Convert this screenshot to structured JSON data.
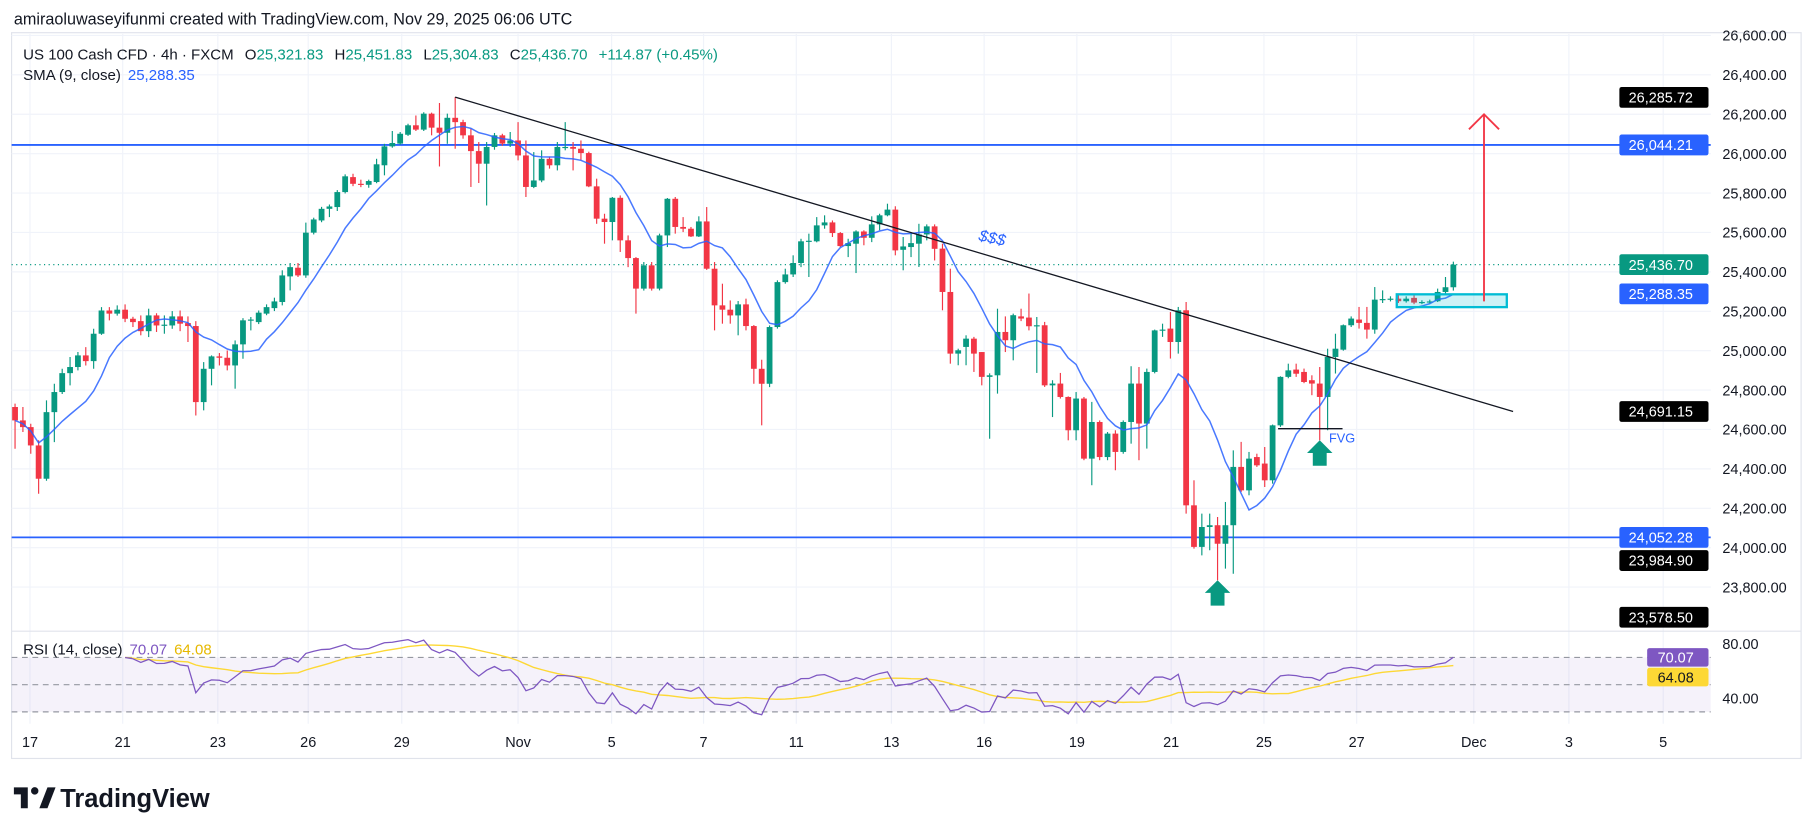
{
  "header": {
    "attribution": "amiraoluwaseyifunmi created with TradingView.com, Nov 29, 2025 06:06 UTC"
  },
  "legend": {
    "symbol": "US 100 Cash CFD · 4h · FXCM",
    "open_label": "O",
    "open": "25,321.83",
    "high_label": "H",
    "high": "25,451.83",
    "low_label": "L",
    "low": "25,304.83",
    "close_label": "C",
    "close": "25,436.70",
    "change": "+114.87 (+0.45%)",
    "sma_label": "SMA (9, close)",
    "sma_value": "25,288.35",
    "rsi_label": "RSI (14, close)",
    "rsi_value": "70.07",
    "rsi_ma_value": "64.08"
  },
  "brand": {
    "logo_text": "TradingView"
  },
  "colors": {
    "up": "#089981",
    "down": "#f23645",
    "sma": "#2962ff",
    "level_line": "#2962ff",
    "rsi": "#7e57c2",
    "rsi_ma": "#fdd835",
    "zone": "#00bcd4",
    "target_arrow": "#f23645",
    "signal_arrow": "#089981"
  },
  "chart_data": {
    "type": "candlestick",
    "interval": "4h",
    "price_axis": {
      "range": [
        23480,
        26660
      ],
      "ticks": [
        "26,600.00",
        "26,400.00",
        "26,200.00",
        "26,000.00",
        "25,800.00",
        "25,600.00",
        "25,400.00",
        "25,200.00",
        "25,000.00",
        "24,800.00",
        "24,600.00",
        "24,400.00",
        "24,200.00",
        "24,000.00",
        "23,800.00"
      ],
      "tick_values": [
        26600,
        26400,
        26200,
        26000,
        25800,
        25600,
        25400,
        25200,
        25000,
        24800,
        24600,
        24400,
        24200,
        24000,
        23800
      ]
    },
    "date_axis": [
      {
        "label": "17",
        "bar": 1.9
      },
      {
        "label": "21",
        "bar": 13.7
      },
      {
        "label": "23",
        "bar": 25.8
      },
      {
        "label": "26",
        "bar": 37.3
      },
      {
        "label": "29",
        "bar": 49.2
      },
      {
        "label": "Nov",
        "bar": 64
      },
      {
        "label": "5",
        "bar": 75.9
      },
      {
        "label": "7",
        "bar": 87.6
      },
      {
        "label": "11",
        "bar": 99.4
      },
      {
        "label": "13",
        "bar": 111.5
      },
      {
        "label": "16",
        "bar": 123.3
      },
      {
        "label": "19",
        "bar": 135.1
      },
      {
        "label": "21",
        "bar": 147.1
      },
      {
        "label": "25",
        "bar": 158.9
      },
      {
        "label": "27",
        "bar": 170.7
      },
      {
        "label": "Dec",
        "bar": 185.6
      },
      {
        "label": "3",
        "bar": 197.7
      },
      {
        "label": "5",
        "bar": 209.7
      }
    ],
    "grid": true,
    "ohlc": [
      [
        24714,
        24731,
        24502,
        24646
      ],
      [
        24646,
        24714,
        24587,
        24612
      ],
      [
        24612,
        24629,
        24477,
        24519
      ],
      [
        24519,
        24545,
        24274,
        24350
      ],
      [
        24350,
        24748,
        24340,
        24688
      ],
      [
        24688,
        24832,
        24536,
        24790
      ],
      [
        24790,
        24908,
        24780,
        24886
      ],
      [
        24886,
        24968,
        24824,
        24917
      ],
      [
        24917,
        24993,
        24900,
        24976
      ],
      [
        24976,
        25018,
        24925,
        24947
      ],
      [
        24947,
        25111,
        24908,
        25086
      ],
      [
        25086,
        25221,
        25080,
        25204
      ],
      [
        25204,
        25221,
        25154,
        25188
      ],
      [
        25188,
        25230,
        25178,
        25208
      ],
      [
        25208,
        25235,
        25145,
        25162
      ],
      [
        25162,
        25172,
        25120,
        25145
      ],
      [
        25150,
        25179,
        25078,
        25099
      ],
      [
        25099,
        25213,
        25069,
        25179
      ],
      [
        25179,
        25190,
        25095,
        25128
      ],
      [
        25128,
        25179,
        25086,
        25132
      ],
      [
        25128,
        25201,
        25111,
        25174
      ],
      [
        25174,
        25204,
        25099,
        25137
      ],
      [
        25140,
        25174,
        25044,
        25125
      ],
      [
        25125,
        25150,
        24671,
        24739
      ],
      [
        24739,
        24942,
        24697,
        24908
      ],
      [
        24908,
        24976,
        24824,
        24971
      ],
      [
        24971,
        24988,
        24925,
        24964
      ],
      [
        24964,
        25001,
        24900,
        24925
      ],
      [
        24925,
        25052,
        24807,
        25032
      ],
      [
        25032,
        25165,
        24959,
        25154
      ],
      [
        25154,
        25171,
        25103,
        25158
      ],
      [
        25145,
        25204,
        25135,
        25193
      ],
      [
        25188,
        25235,
        25180,
        25221
      ],
      [
        25216,
        25269,
        25201,
        25250
      ],
      [
        25247,
        25408,
        25230,
        25382
      ],
      [
        25377,
        25445,
        25306,
        25424
      ],
      [
        25421,
        25445,
        25374,
        25382
      ],
      [
        25382,
        25650,
        25370,
        25599
      ],
      [
        25599,
        25675,
        25590,
        25666
      ],
      [
        25661,
        25730,
        25652,
        25720
      ],
      [
        25720,
        25742,
        25678,
        25732
      ],
      [
        25729,
        25815,
        25709,
        25805
      ],
      [
        25805,
        25895,
        25798,
        25885
      ],
      [
        25881,
        25898,
        25835,
        25847
      ],
      [
        25847,
        25868,
        25830,
        25842
      ],
      [
        25842,
        25868,
        25827,
        25861
      ],
      [
        25856,
        25974,
        25850,
        25946
      ],
      [
        25941,
        26050,
        25890,
        26037
      ],
      [
        26037,
        26115,
        26030,
        26054
      ],
      [
        26051,
        26110,
        26045,
        26101
      ],
      [
        26096,
        26152,
        26090,
        26144
      ],
      [
        26144,
        26194,
        26115,
        26122
      ],
      [
        26122,
        26210,
        26115,
        26203
      ],
      [
        26203,
        26208,
        26093,
        26132
      ],
      [
        26132,
        26257,
        25935,
        26106
      ],
      [
        26106,
        26203,
        26050,
        26182
      ],
      [
        26182,
        26287,
        26025,
        26160
      ],
      [
        26160,
        26172,
        26076,
        26093
      ],
      [
        26093,
        26127,
        25831,
        26013
      ],
      [
        26013,
        26059,
        25851,
        25949
      ],
      [
        25949,
        26059,
        25737,
        26034
      ],
      [
        26034,
        26105,
        26020,
        26093
      ],
      [
        26093,
        26101,
        26040,
        26051
      ],
      [
        26051,
        26110,
        26034,
        26067
      ],
      [
        26067,
        26160,
        25966,
        25991
      ],
      [
        25991,
        26067,
        25780,
        25831
      ],
      [
        25831,
        26008,
        25825,
        25864
      ],
      [
        25864,
        26017,
        25855,
        25974
      ],
      [
        25974,
        25985,
        25924,
        25941
      ],
      [
        25941,
        26059,
        25915,
        26034
      ],
      [
        26030,
        26160,
        26017,
        26034
      ],
      [
        26034,
        26059,
        25915,
        26025
      ],
      [
        26025,
        26067,
        25966,
        26003
      ],
      [
        26003,
        26010,
        25830,
        25834
      ],
      [
        25834,
        25873,
        25644,
        25670
      ],
      [
        25670,
        25695,
        25543,
        25653
      ],
      [
        25653,
        25780,
        25560,
        25776
      ],
      [
        25776,
        25788,
        25501,
        25560
      ],
      [
        25560,
        25585,
        25424,
        25470
      ],
      [
        25470,
        25475,
        25188,
        25315
      ],
      [
        25315,
        25450,
        25305,
        25433
      ],
      [
        25433,
        25450,
        25305,
        25315
      ],
      [
        25315,
        25594,
        25306,
        25585
      ],
      [
        25585,
        25775,
        25526,
        25771
      ],
      [
        25771,
        25780,
        25594,
        25628
      ],
      [
        25628,
        25678,
        25602,
        25619
      ],
      [
        25619,
        25628,
        25577,
        25580
      ],
      [
        25580,
        25682,
        25577,
        25656
      ],
      [
        25656,
        25729,
        25410,
        25416
      ],
      [
        25416,
        25450,
        25103,
        25230
      ],
      [
        25230,
        25340,
        25137,
        25208
      ],
      [
        25208,
        25255,
        25137,
        25179
      ],
      [
        25179,
        25252,
        25078,
        25235
      ],
      [
        25235,
        25264,
        25103,
        25125
      ],
      [
        25125,
        25130,
        24832,
        24908
      ],
      [
        24908,
        24954,
        24621,
        24832
      ],
      [
        24832,
        25128,
        24815,
        25120
      ],
      [
        25120,
        25357,
        25112,
        25348
      ],
      [
        25348,
        25416,
        25340,
        25387
      ],
      [
        25387,
        25484,
        25374,
        25445
      ],
      [
        25445,
        25568,
        25424,
        25555
      ],
      [
        25555,
        25594,
        25374,
        25558
      ],
      [
        25555,
        25678,
        25550,
        25636
      ],
      [
        25636,
        25687,
        25619,
        25651
      ],
      [
        25651,
        25661,
        25577,
        25597
      ],
      [
        25597,
        25602,
        25526,
        25531
      ],
      [
        25531,
        25568,
        25475,
        25546
      ],
      [
        25543,
        25611,
        25394,
        25605
      ],
      [
        25605,
        25611,
        25535,
        25573
      ],
      [
        25573,
        25682,
        25551,
        25641
      ],
      [
        25641,
        25695,
        25611,
        25687
      ],
      [
        25687,
        25746,
        25682,
        25716
      ],
      [
        25716,
        25733,
        25484,
        25509
      ],
      [
        25512,
        25577,
        25408,
        25529
      ],
      [
        25526,
        25602,
        25475,
        25546
      ],
      [
        25543,
        25644,
        25425,
        25590
      ],
      [
        25590,
        25641,
        25560,
        25631
      ],
      [
        25631,
        25641,
        25458,
        25517
      ],
      [
        25518,
        25543,
        25205,
        25298
      ],
      [
        25298,
        25416,
        24934,
        24985
      ],
      [
        24985,
        25010,
        24926,
        25002
      ],
      [
        25019,
        25078,
        24926,
        25061
      ],
      [
        25061,
        25070,
        24892,
        24985
      ],
      [
        24993,
        24993,
        24824,
        24867
      ],
      [
        24867,
        24885,
        24553,
        24875
      ],
      [
        24875,
        25213,
        24782,
        25095
      ],
      [
        25095,
        25174,
        24993,
        25053
      ],
      [
        25053,
        25188,
        24951,
        25180
      ],
      [
        25174,
        25213,
        25150,
        25163
      ],
      [
        25168,
        25290,
        25103,
        25124
      ],
      [
        25129,
        25171,
        24887,
        25129
      ],
      [
        25129,
        25146,
        24816,
        24824
      ],
      [
        24824,
        24850,
        24663,
        24833
      ],
      [
        24833,
        24887,
        24757,
        24765
      ],
      [
        24765,
        24768,
        24545,
        24596
      ],
      [
        24596,
        24790,
        24545,
        24757
      ],
      [
        24757,
        24765,
        24444,
        24452
      ],
      [
        24452,
        24740,
        24317,
        24638
      ],
      [
        24638,
        24646,
        24444,
        24460
      ],
      [
        24460,
        24587,
        24444,
        24579
      ],
      [
        24579,
        24596,
        24393,
        24486
      ],
      [
        24486,
        24646,
        24477,
        24638
      ],
      [
        24638,
        24921,
        24528,
        24833
      ],
      [
        24833,
        24917,
        24444,
        24630
      ],
      [
        24630,
        24909,
        24503,
        24892
      ],
      [
        24892,
        25107,
        24885,
        25103
      ],
      [
        25103,
        25137,
        25070,
        25107
      ],
      [
        25112,
        25196,
        24960,
        25044
      ],
      [
        25044,
        25222,
        24985,
        25205
      ],
      [
        25205,
        25247,
        24173,
        24215
      ],
      [
        24215,
        24342,
        23995,
        24004
      ],
      [
        24004,
        24173,
        23961,
        24105
      ],
      [
        24105,
        24173,
        23987,
        24114
      ],
      [
        24114,
        24156,
        23835,
        24020
      ],
      [
        24020,
        24232,
        23894,
        24114
      ],
      [
        24114,
        24494,
        23868,
        24410
      ],
      [
        24410,
        24537,
        24283,
        24291
      ],
      [
        24291,
        24486,
        24266,
        24452
      ],
      [
        24460,
        24477,
        24410,
        24418
      ],
      [
        24427,
        24511,
        24308,
        24342
      ],
      [
        24342,
        24625,
        24325,
        24621
      ],
      [
        24621,
        24870,
        24613,
        24867
      ],
      [
        24867,
        24934,
        24860,
        24900
      ],
      [
        24904,
        24934,
        24867,
        24883
      ],
      [
        24892,
        24909,
        24835,
        24841
      ],
      [
        24850,
        24875,
        24774,
        24833
      ],
      [
        24833,
        24917,
        24545,
        24765
      ],
      [
        24765,
        25010,
        24596,
        24968
      ],
      [
        24968,
        25086,
        24884,
        25010
      ],
      [
        25005,
        25133,
        25000,
        25129
      ],
      [
        25129,
        25174,
        25120,
        25163
      ],
      [
        25158,
        25222,
        25112,
        25141
      ],
      [
        25141,
        25222,
        25061,
        25107
      ],
      [
        25107,
        25323,
        25086,
        25259
      ],
      [
        25259,
        25306,
        25242,
        25262
      ],
      [
        25262,
        25276,
        25250,
        25264
      ],
      [
        25264,
        25289,
        25242,
        25251
      ],
      [
        25251,
        25276,
        25244,
        25264
      ],
      [
        25268,
        25280,
        25236,
        25244
      ],
      [
        25244,
        25256,
        25236,
        25247
      ],
      [
        25247,
        25259,
        25240,
        25250
      ],
      [
        25251,
        25315,
        25247,
        25298
      ],
      [
        25298,
        25374,
        25290,
        25322
      ],
      [
        25321.83,
        25451.83,
        25304.83,
        25436.7
      ]
    ],
    "indicators": {
      "sma": {
        "label": "SMA (9, close)",
        "period": 9,
        "last": 25288.35
      },
      "rsi": {
        "label": "RSI (14, close)",
        "period": 14,
        "last": 70.07,
        "ma_last": 64.08,
        "range": [
          20,
          90
        ],
        "levels": [
          70,
          50,
          30
        ],
        "ticks": [
          "80.00",
          "40.00"
        ],
        "tick_values": [
          80,
          40
        ]
      }
    },
    "last_price": 25436.7,
    "drawings": {
      "horizontal_lines": [
        26044.21,
        24052.28
      ],
      "trendline": {
        "from_bar": 56,
        "from_price": 26287,
        "to_bar": 190.6,
        "to_price": 24691.15
      },
      "zone": {
        "from_bar": 175.8,
        "to_bar": 189.8,
        "top": 25286,
        "bottom": 25221
      },
      "target_arrow": {
        "bar": 186.9,
        "from_price": 25250,
        "to_price": 26200
      },
      "signal_arrows": [
        {
          "bar": 153,
          "tip_price": 23835
        },
        {
          "bar": 166,
          "tip_price": 24545
        }
      ],
      "liquidity_label": {
        "text": "$$$",
        "bar": 122.5,
        "price": 25560
      },
      "fvg": {
        "text": "FVG",
        "from_bar": 160.7,
        "to_bar": 168.9,
        "price": 24604
      }
    },
    "price_badges": [
      {
        "text": "26,285.72",
        "price": 26285.72,
        "color": "#000000"
      },
      {
        "text": "26,044.21",
        "price": 26044.21,
        "color": "#2962ff"
      },
      {
        "text": "25,436.70",
        "price": 25436.7,
        "color": "#089981"
      },
      {
        "text": "25,288.35",
        "price": 25288.35,
        "color": "#2962ff"
      },
      {
        "text": "24,691.15",
        "price": 24691.15,
        "color": "#000000"
      },
      {
        "text": "24,052.28",
        "price": 24052.28,
        "color": "#2962ff"
      },
      {
        "text": "23,984.90",
        "price": 23984.9,
        "color": "#000000"
      },
      {
        "text": "23,578.50",
        "price": 23578.5,
        "color": "#000000"
      }
    ],
    "rsi_badges": [
      {
        "text": "70.07",
        "value": 70.07,
        "color": "#7e57c2"
      },
      {
        "text": "64.08",
        "value": 64.08,
        "color": "#fdd835"
      }
    ]
  }
}
